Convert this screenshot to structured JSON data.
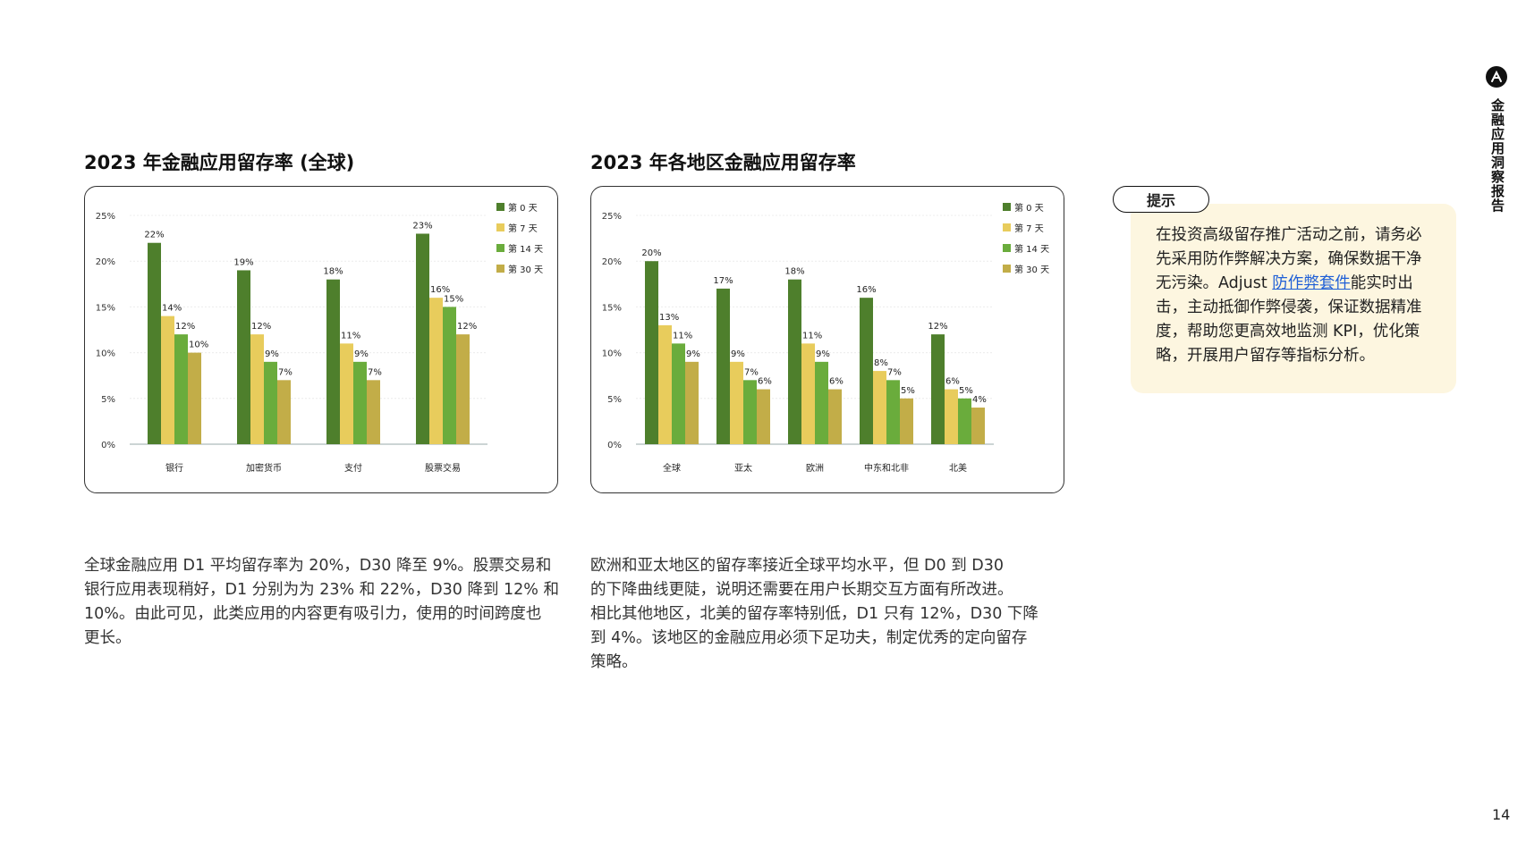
{
  "side": {
    "title": "金融应用洞察报告",
    "logo_icon": "adjust-logo-icon"
  },
  "page_number": "14",
  "colors": {
    "d0": "#4e7f2c",
    "d7": "#e8cc5c",
    "d14": "#6aac3c",
    "d30": "#c2ad48"
  },
  "chart_data": [
    {
      "type": "bar",
      "title": "2023 年金融应用留存率 (全球)",
      "categories": [
        "银行",
        "加密货币",
        "支付",
        "股票交易"
      ],
      "ylim": [
        0,
        25
      ],
      "y_ticks": [
        "0%",
        "5%",
        "10%",
        "15%",
        "20%",
        "25%"
      ],
      "legend_position": "top-right",
      "series": [
        {
          "name": "第 0 天",
          "values": [
            22,
            19,
            18,
            23
          ],
          "labels": [
            "22%",
            "19%",
            "18%",
            "23%"
          ]
        },
        {
          "name": "第 7 天",
          "values": [
            14,
            12,
            11,
            16
          ],
          "labels": [
            "14%",
            "12%",
            "11%",
            "16%"
          ]
        },
        {
          "name": "第 14 天",
          "values": [
            12,
            9,
            9,
            15
          ],
          "labels": [
            "12%",
            "9%",
            "9%",
            "15%"
          ]
        },
        {
          "name": "第 30 天",
          "values": [
            10,
            7,
            7,
            12
          ],
          "labels": [
            "10%",
            "7%",
            "7%",
            "12%"
          ]
        }
      ]
    },
    {
      "type": "bar",
      "title": "2023 年各地区金融应用留存率",
      "categories": [
        "全球",
        "亚太",
        "欧洲",
        "中东和北非",
        "北美"
      ],
      "ylim": [
        0,
        25
      ],
      "y_ticks": [
        "0%",
        "5%",
        "10%",
        "15%",
        "20%",
        "25%"
      ],
      "legend_position": "top-right",
      "series": [
        {
          "name": "第 0 天",
          "values": [
            20,
            17,
            18,
            16,
            12
          ],
          "labels": [
            "20%",
            "17%",
            "18%",
            "16%",
            "12%"
          ]
        },
        {
          "name": "第 7 天",
          "values": [
            13,
            9,
            11,
            8,
            6
          ],
          "labels": [
            "13%",
            "9%",
            "11%",
            "8%",
            "6%"
          ]
        },
        {
          "name": "第 14 天",
          "values": [
            11,
            7,
            9,
            7,
            5
          ],
          "labels": [
            "11%",
            "7%",
            "9%",
            "7%",
            "5%"
          ]
        },
        {
          "name": "第 30 天",
          "values": [
            9,
            6,
            6,
            5,
            4
          ],
          "labels": [
            "9%",
            "6%",
            "6%",
            "5%",
            "4%"
          ]
        }
      ]
    }
  ],
  "text": {
    "left": [
      "全球金融应用 D1 平均留存率为 20%，D30 降至 9%。股票交易和",
      "银行应用表现稍好，D1 分别为为 23% 和 22%，D30 降到 12% 和",
      "10%。由此可见，此类应用的内容更有吸引力，使用的时间跨度也",
      "更长。"
    ],
    "right": [
      "欧洲和亚太地区的留存率接近全球平均水平，但 D0 到 D30",
      "的下降曲线更陡，说明还需要在用户长期交互方面有所改进。",
      "相比其他地区，北美的留存率特别低，D1 只有 12%，D30 下降",
      "到 4%。该地区的金融应用必须下足功夫，制定优秀的定向留存",
      "策略。"
    ]
  },
  "tip": {
    "label": "提示",
    "part1": "在投资高级留存推广活动之前，请务必先采用防作弊解决方案，确保数据干净无污染。Adjust ",
    "link": "防作弊套件",
    "part2": "能实时出击，主动抵御作弊侵袭，保证数据精准度，帮助您更高效地监测 KPI，优化策略，开展用户留存等指标分析。"
  }
}
